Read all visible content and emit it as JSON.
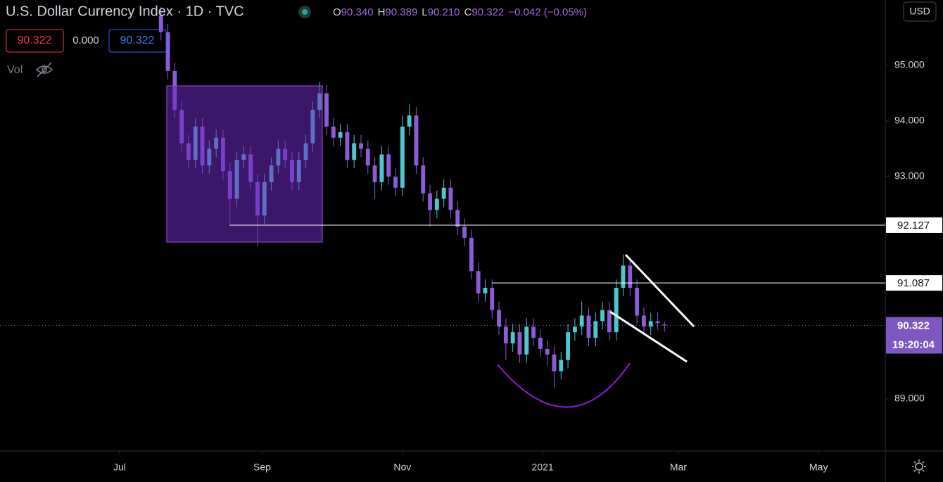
{
  "header": {
    "title": "U.S. Dollar Currency Index · 1D · TVC",
    "o_label": "O",
    "h_label": "H",
    "l_label": "L",
    "c_label": "C",
    "open": "90.340",
    "high": "90.389",
    "low": "90.210",
    "close": "90.322",
    "change": "−0.042 (−0.05%)",
    "bid": "90.322",
    "spread": "0.000",
    "ask": "90.322",
    "vol_label": "Vol",
    "currency": "USD"
  },
  "chart_data": {
    "type": "candlestick",
    "x": [
      18,
      21,
      24,
      27,
      30,
      33,
      36,
      39,
      42,
      45,
      48,
      51,
      54,
      57,
      60,
      63,
      66,
      69,
      72,
      75,
      78,
      81,
      84,
      87,
      90,
      93,
      96,
      99,
      102,
      105,
      108,
      111,
      114,
      117,
      120,
      123,
      126,
      129,
      132,
      135,
      138,
      141,
      144,
      147,
      150,
      153,
      156,
      159,
      162,
      165,
      168,
      171,
      174,
      177,
      180,
      183,
      186,
      189,
      192,
      195,
      198,
      201,
      204,
      207,
      210,
      213,
      216,
      219,
      222,
      225,
      228,
      231,
      234,
      237
    ],
    "open": [
      95.9,
      95.6,
      94.9,
      94.2,
      93.6,
      93.3,
      93.9,
      93.2,
      93.5,
      93.7,
      93.1,
      92.6,
      93.3,
      93.4,
      92.9,
      92.3,
      92.9,
      93.2,
      93.5,
      93.3,
      92.9,
      93.3,
      93.6,
      94.2,
      94.5,
      93.9,
      93.7,
      93.8,
      93.3,
      93.6,
      93.5,
      93.2,
      92.9,
      93.4,
      93.0,
      92.8,
      93.9,
      94.1,
      93.2,
      92.7,
      92.4,
      92.6,
      92.8,
      92.4,
      92.1,
      91.9,
      91.3,
      90.9,
      91.0,
      90.6,
      90.3,
      90.0,
      90.2,
      89.8,
      90.3,
      90.1,
      89.9,
      89.8,
      89.5,
      89.7,
      90.2,
      90.3,
      90.5,
      90.1,
      90.4,
      90.6,
      90.2,
      91.0,
      91.4,
      91.0,
      90.5,
      90.3,
      90.4,
      90.34
    ],
    "high": [
      96.05,
      95.75,
      95.05,
      94.35,
      93.75,
      94.05,
      94.05,
      93.65,
      93.85,
      93.85,
      93.25,
      93.45,
      93.55,
      93.55,
      93.05,
      93.05,
      93.35,
      93.65,
      93.65,
      93.45,
      93.45,
      93.75,
      94.35,
      94.7,
      94.65,
      94.05,
      93.95,
      93.95,
      93.75,
      93.75,
      93.65,
      93.35,
      93.55,
      93.55,
      93.15,
      94.1,
      94.3,
      94.25,
      93.35,
      92.85,
      92.75,
      92.95,
      92.95,
      92.55,
      92.25,
      92.05,
      91.45,
      91.15,
      91.15,
      90.75,
      90.45,
      90.35,
      90.35,
      90.45,
      90.45,
      90.25,
      90.05,
      89.95,
      89.85,
      90.35,
      90.45,
      90.75,
      90.65,
      90.55,
      90.75,
      90.75,
      91.15,
      91.6,
      91.55,
      91.15,
      90.65,
      90.55,
      90.55,
      90.389
    ],
    "low": [
      95.45,
      94.75,
      94.05,
      93.45,
      93.15,
      93.15,
      93.05,
      93.05,
      93.35,
      92.95,
      92.1,
      92.45,
      93.15,
      92.75,
      91.75,
      92.15,
      92.75,
      93.05,
      93.15,
      92.75,
      92.75,
      93.15,
      93.45,
      94.05,
      93.75,
      93.55,
      93.55,
      93.15,
      93.15,
      93.35,
      93.05,
      92.6,
      92.75,
      92.85,
      92.65,
      92.65,
      93.75,
      93.05,
      92.55,
      92.1,
      92.25,
      92.45,
      92.25,
      91.95,
      91.75,
      91.15,
      90.75,
      90.75,
      90.45,
      90.15,
      89.7,
      89.85,
      89.65,
      89.65,
      89.95,
      89.75,
      89.6,
      89.2,
      89.35,
      89.55,
      90.05,
      90.15,
      89.95,
      89.95,
      90.25,
      90.05,
      90.05,
      90.85,
      90.85,
      90.35,
      90.15,
      90.15,
      90.25,
      90.21
    ],
    "close": [
      95.6,
      94.9,
      94.2,
      93.6,
      93.3,
      93.9,
      93.2,
      93.5,
      93.7,
      93.1,
      92.6,
      93.3,
      93.4,
      92.9,
      92.3,
      92.9,
      93.2,
      93.5,
      93.3,
      92.9,
      93.3,
      93.6,
      94.2,
      94.5,
      93.9,
      93.7,
      93.8,
      93.3,
      93.6,
      93.5,
      93.2,
      92.9,
      93.4,
      93.0,
      92.8,
      93.9,
      94.1,
      93.2,
      92.7,
      92.4,
      92.6,
      92.8,
      92.4,
      92.1,
      91.9,
      91.3,
      90.9,
      91.0,
      90.6,
      90.3,
      90.0,
      90.2,
      89.8,
      90.3,
      90.1,
      89.9,
      89.8,
      89.5,
      89.7,
      90.2,
      90.3,
      90.5,
      90.1,
      90.4,
      90.6,
      90.2,
      91.0,
      91.4,
      91.0,
      90.5,
      90.3,
      90.4,
      90.364,
      90.322
    ],
    "up_color": "#4cc6cf",
    "down_color": "#8a5cd6",
    "xlim": [
      -52,
      333
    ],
    "xticks": [
      {
        "value": 0,
        "label": "Jul"
      },
      {
        "value": 62,
        "label": "Sep"
      },
      {
        "value": 123,
        "label": "Nov"
      },
      {
        "value": 184,
        "label": "2021"
      },
      {
        "value": 243,
        "label": "Mar"
      },
      {
        "value": 304,
        "label": "May"
      }
    ],
    "ylim": [
      88.063,
      96.177
    ],
    "yticks": [
      {
        "value": 89,
        "label": "89.000"
      },
      {
        "value": 93,
        "label": "93.000"
      },
      {
        "value": 94,
        "label": "94.000"
      },
      {
        "value": 95,
        "label": "95.000"
      }
    ],
    "levels": [
      {
        "value": 92.127,
        "label": "92.127",
        "start": 48
      },
      {
        "value": 91.087,
        "label": "91.087",
        "start": 162
      }
    ],
    "last_price": {
      "value": 90.322,
      "label": "90.322",
      "countdown": "19:20:04"
    }
  }
}
